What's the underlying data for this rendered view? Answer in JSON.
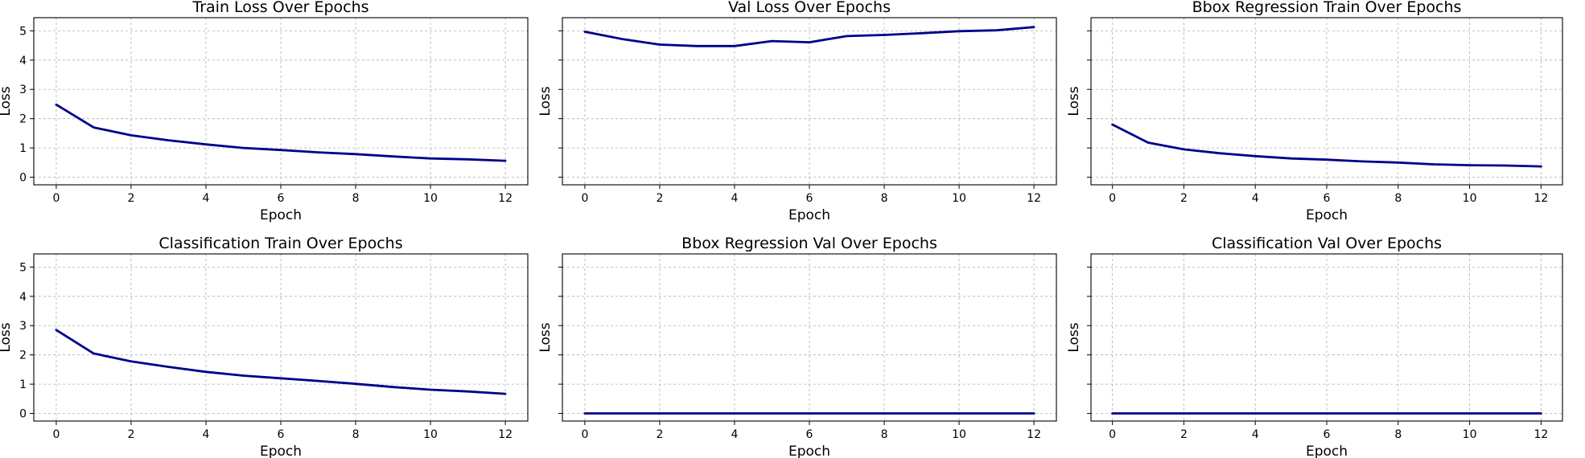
{
  "colors": {
    "line": "#00008b",
    "grid": "#b0b0b0",
    "background": "#ffffff"
  },
  "chart_data": [
    {
      "type": "line",
      "title": "Train Loss Over Epochs",
      "xlabel": "Epoch",
      "ylabel": "Loss",
      "x": [
        0,
        1,
        2,
        3,
        4,
        5,
        6,
        7,
        8,
        9,
        10,
        11,
        12
      ],
      "series": [
        {
          "values": [
            2.48,
            1.7,
            1.43,
            1.26,
            1.12,
            1.0,
            0.93,
            0.85,
            0.79,
            0.71,
            0.64,
            0.61,
            0.56
          ]
        }
      ],
      "xticks": [
        0,
        2,
        4,
        6,
        8,
        10,
        12
      ],
      "yticks": [
        0,
        1,
        2,
        3,
        4,
        5
      ],
      "xlim": [
        -0.6,
        12.6
      ],
      "ylim": [
        -0.26,
        5.45
      ],
      "grid": true,
      "show_yticklabels": true
    },
    {
      "type": "line",
      "title": "Val Loss Over Epochs",
      "xlabel": "Epoch",
      "ylabel": "Loss",
      "x": [
        0,
        1,
        2,
        3,
        4,
        5,
        6,
        7,
        8,
        9,
        10,
        11,
        12
      ],
      "series": [
        {
          "values": [
            4.97,
            4.72,
            4.53,
            4.48,
            4.48,
            4.65,
            4.61,
            4.82,
            4.86,
            4.92,
            4.99,
            5.02,
            5.13
          ]
        }
      ],
      "xticks": [
        0,
        2,
        4,
        6,
        8,
        10,
        12
      ],
      "yticks": [
        0,
        1,
        2,
        3,
        4,
        5
      ],
      "xlim": [
        -0.6,
        12.6
      ],
      "ylim": [
        -0.26,
        5.45
      ],
      "grid": true,
      "show_yticklabels": false
    },
    {
      "type": "line",
      "title": "Bbox Regression Train Over Epochs",
      "xlabel": "Epoch",
      "ylabel": "Loss",
      "x": [
        0,
        1,
        2,
        3,
        4,
        5,
        6,
        7,
        8,
        9,
        10,
        11,
        12
      ],
      "series": [
        {
          "values": [
            1.8,
            1.18,
            0.95,
            0.82,
            0.72,
            0.64,
            0.6,
            0.54,
            0.5,
            0.44,
            0.41,
            0.4,
            0.37
          ]
        }
      ],
      "xticks": [
        0,
        2,
        4,
        6,
        8,
        10,
        12
      ],
      "yticks": [
        0,
        1,
        2,
        3,
        4,
        5
      ],
      "xlim": [
        -0.6,
        12.6
      ],
      "ylim": [
        -0.26,
        5.45
      ],
      "grid": true,
      "show_yticklabels": false
    },
    {
      "type": "line",
      "title": "Classification Train Over Epochs",
      "xlabel": "Epoch",
      "ylabel": "Loss",
      "x": [
        0,
        1,
        2,
        3,
        4,
        5,
        6,
        7,
        8,
        9,
        10,
        11,
        12
      ],
      "series": [
        {
          "values": [
            2.85,
            2.05,
            1.78,
            1.59,
            1.42,
            1.29,
            1.2,
            1.11,
            1.01,
            0.9,
            0.81,
            0.75,
            0.67
          ]
        }
      ],
      "xticks": [
        0,
        2,
        4,
        6,
        8,
        10,
        12
      ],
      "yticks": [
        0,
        1,
        2,
        3,
        4,
        5
      ],
      "xlim": [
        -0.6,
        12.6
      ],
      "ylim": [
        -0.26,
        5.45
      ],
      "grid": true,
      "show_yticklabels": true
    },
    {
      "type": "line",
      "title": "Bbox Regression Val Over Epochs",
      "xlabel": "Epoch",
      "ylabel": "Loss",
      "x": [
        0,
        1,
        2,
        3,
        4,
        5,
        6,
        7,
        8,
        9,
        10,
        11,
        12
      ],
      "series": [
        {
          "values": [
            0,
            0,
            0,
            0,
            0,
            0,
            0,
            0,
            0,
            0,
            0,
            0,
            0
          ]
        }
      ],
      "xticks": [
        0,
        2,
        4,
        6,
        8,
        10,
        12
      ],
      "yticks": [
        0,
        1,
        2,
        3,
        4,
        5
      ],
      "xlim": [
        -0.6,
        12.6
      ],
      "ylim": [
        -0.26,
        5.45
      ],
      "grid": true,
      "show_yticklabels": false
    },
    {
      "type": "line",
      "title": "Classification Val Over Epochs",
      "xlabel": "Epoch",
      "ylabel": "Loss",
      "x": [
        0,
        1,
        2,
        3,
        4,
        5,
        6,
        7,
        8,
        9,
        10,
        11,
        12
      ],
      "series": [
        {
          "values": [
            0,
            0,
            0,
            0,
            0,
            0,
            0,
            0,
            0,
            0,
            0,
            0,
            0
          ]
        }
      ],
      "xticks": [
        0,
        2,
        4,
        6,
        8,
        10,
        12
      ],
      "yticks": [
        0,
        1,
        2,
        3,
        4,
        5
      ],
      "xlim": [
        -0.6,
        12.6
      ],
      "ylim": [
        -0.26,
        5.45
      ],
      "grid": true,
      "show_yticklabels": false
    }
  ]
}
